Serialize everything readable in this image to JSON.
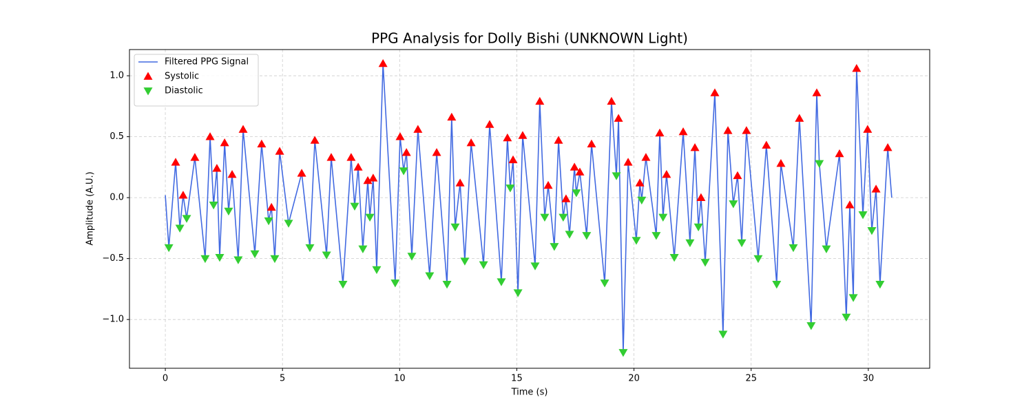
{
  "chart_data": {
    "type": "line",
    "title": "PPG Analysis for Dolly Bishi (UNKNOWN Light)",
    "x_label": "Time (s)",
    "y_label": "Amplitude (A.U.)",
    "xlim": [
      -1.53,
      32.62
    ],
    "ylim": [
      -1.4,
      1.215
    ],
    "xticks": [
      0,
      5,
      10,
      15,
      20,
      25,
      30
    ],
    "yticks": [
      {
        "value": -1.0,
        "label": "−1.0"
      },
      {
        "value": -0.5,
        "label": "−0.5"
      },
      {
        "value": 0.0,
        "label": "0.0"
      },
      0.5,
      {
        "value": 1.0,
        "label": "1.0"
      }
    ],
    "grid": true,
    "legend": "upper left",
    "series": [
      {
        "name": "Filtered PPG Signal",
        "type": "line",
        "color": "#4169e1",
        "x": [
          0.0,
          0.15,
          0.44,
          0.62,
          0.76,
          0.91,
          1.26,
          1.7,
          1.91,
          2.06,
          2.2,
          2.32,
          2.53,
          2.7,
          2.85,
          3.11,
          3.32,
          3.82,
          4.11,
          4.41,
          4.53,
          4.67,
          4.88,
          5.26,
          5.82,
          6.17,
          6.38,
          6.88,
          7.08,
          7.58,
          7.93,
          8.08,
          8.23,
          8.43,
          8.64,
          8.73,
          8.87,
          9.02,
          9.29,
          9.81,
          10.02,
          10.17,
          10.29,
          10.52,
          10.78,
          11.28,
          11.58,
          12.02,
          12.22,
          12.37,
          12.58,
          12.78,
          13.05,
          13.58,
          13.84,
          14.34,
          14.6,
          14.72,
          14.84,
          15.05,
          15.25,
          15.78,
          15.98,
          16.19,
          16.34,
          16.6,
          16.78,
          16.98,
          17.1,
          17.25,
          17.46,
          17.54,
          17.69,
          17.98,
          18.19,
          18.75,
          19.04,
          19.25,
          19.34,
          19.54,
          19.75,
          20.1,
          20.25,
          20.33,
          20.51,
          20.95,
          21.1,
          21.24,
          21.39,
          21.72,
          22.1,
          22.39,
          22.6,
          22.75,
          22.86,
          23.04,
          23.45,
          23.8,
          24.01,
          24.24,
          24.42,
          24.6,
          24.8,
          25.3,
          25.65,
          26.09,
          26.27,
          26.8,
          27.06,
          27.56,
          27.8,
          27.91,
          28.21,
          28.77,
          29.06,
          29.21,
          29.36,
          29.5,
          29.77,
          29.97,
          30.15,
          30.33,
          30.5,
          30.83,
          31.0
        ],
        "y": [
          0.02,
          -0.41,
          0.29,
          -0.25,
          0.02,
          -0.17,
          0.33,
          -0.5,
          0.5,
          -0.06,
          0.24,
          -0.49,
          0.45,
          -0.11,
          0.19,
          -0.51,
          0.56,
          -0.46,
          0.44,
          -0.19,
          -0.08,
          -0.5,
          0.38,
          -0.21,
          0.2,
          -0.41,
          0.47,
          -0.47,
          0.33,
          -0.71,
          0.33,
          -0.07,
          0.25,
          -0.42,
          0.14,
          -0.16,
          0.16,
          -0.59,
          1.1,
          -0.7,
          0.5,
          0.22,
          0.37,
          -0.48,
          0.56,
          -0.64,
          0.37,
          -0.71,
          0.66,
          -0.24,
          0.12,
          -0.52,
          0.45,
          -0.55,
          0.6,
          -0.69,
          0.49,
          0.08,
          0.31,
          -0.78,
          0.51,
          -0.56,
          0.79,
          -0.16,
          0.1,
          -0.4,
          0.47,
          -0.16,
          -0.01,
          -0.3,
          0.25,
          0.04,
          0.21,
          -0.31,
          0.44,
          -0.7,
          0.79,
          0.18,
          0.65,
          -1.27,
          0.29,
          -0.35,
          0.12,
          -0.02,
          0.33,
          -0.31,
          0.53,
          -0.16,
          0.19,
          -0.49,
          0.54,
          -0.37,
          0.41,
          -0.24,
          0.0,
          -0.53,
          0.86,
          -1.12,
          0.55,
          -0.05,
          0.18,
          -0.37,
          0.55,
          -0.5,
          0.43,
          -0.71,
          0.28,
          -0.41,
          0.65,
          -1.05,
          0.86,
          0.28,
          -0.42,
          0.36,
          -0.98,
          -0.06,
          -0.82,
          1.06,
          -0.14,
          0.56,
          -0.27,
          0.07,
          -0.71,
          0.41,
          0.0
        ]
      },
      {
        "name": "Systolic",
        "type": "scatter",
        "marker": "up",
        "color": "#ff0000",
        "x": [
          0.44,
          0.76,
          1.26,
          1.91,
          2.2,
          2.53,
          2.85,
          3.32,
          4.11,
          4.53,
          4.88,
          5.82,
          6.38,
          7.08,
          7.93,
          8.23,
          8.64,
          8.87,
          9.29,
          10.02,
          10.29,
          10.78,
          11.58,
          12.22,
          12.58,
          13.05,
          13.84,
          14.6,
          14.84,
          15.25,
          15.98,
          16.34,
          16.78,
          17.1,
          17.46,
          17.69,
          18.19,
          19.04,
          19.34,
          19.75,
          20.25,
          20.51,
          21.1,
          21.39,
          22.1,
          22.6,
          22.86,
          23.45,
          24.01,
          24.42,
          24.8,
          25.65,
          26.27,
          27.06,
          27.8,
          28.77,
          29.21,
          29.5,
          29.97,
          30.33,
          30.83
        ],
        "y": [
          0.29,
          0.02,
          0.33,
          0.5,
          0.24,
          0.45,
          0.19,
          0.56,
          0.44,
          -0.08,
          0.38,
          0.2,
          0.47,
          0.33,
          0.33,
          0.25,
          0.14,
          0.16,
          1.1,
          0.5,
          0.37,
          0.56,
          0.37,
          0.66,
          0.12,
          0.45,
          0.6,
          0.49,
          0.31,
          0.51,
          0.79,
          0.1,
          0.47,
          -0.01,
          0.25,
          0.21,
          0.44,
          0.79,
          0.65,
          0.29,
          0.12,
          0.33,
          0.53,
          0.19,
          0.54,
          0.41,
          0.0,
          0.86,
          0.55,
          0.18,
          0.55,
          0.43,
          0.28,
          0.65,
          0.86,
          0.36,
          -0.06,
          1.06,
          0.56,
          0.07,
          0.41
        ]
      },
      {
        "name": "Diastolic",
        "type": "scatter",
        "marker": "down",
        "color": "#32cd32",
        "x": [
          0.15,
          0.62,
          0.91,
          1.7,
          2.06,
          2.32,
          2.7,
          3.11,
          3.82,
          4.41,
          4.67,
          5.26,
          6.17,
          6.88,
          7.58,
          8.08,
          8.43,
          8.73,
          9.02,
          9.81,
          10.17,
          10.52,
          11.28,
          12.02,
          12.37,
          12.78,
          13.58,
          14.34,
          14.72,
          15.05,
          15.78,
          16.19,
          16.6,
          16.98,
          17.25,
          17.54,
          17.98,
          18.75,
          19.25,
          19.54,
          20.1,
          20.33,
          20.95,
          21.24,
          21.72,
          22.39,
          22.75,
          23.04,
          23.8,
          24.24,
          24.6,
          25.3,
          26.09,
          26.8,
          27.56,
          27.91,
          28.21,
          29.06,
          29.36,
          29.77,
          30.15,
          30.5
        ],
        "y": [
          -0.41,
          -0.25,
          -0.17,
          -0.5,
          -0.06,
          -0.49,
          -0.11,
          -0.51,
          -0.46,
          -0.19,
          -0.5,
          -0.21,
          -0.41,
          -0.47,
          -0.71,
          -0.07,
          -0.42,
          -0.16,
          -0.59,
          -0.7,
          0.22,
          -0.48,
          -0.64,
          -0.71,
          -0.24,
          -0.52,
          -0.55,
          -0.69,
          0.08,
          -0.78,
          -0.56,
          -0.16,
          -0.4,
          -0.16,
          -0.3,
          0.04,
          -0.31,
          -0.7,
          0.18,
          -1.27,
          -0.35,
          -0.02,
          -0.31,
          -0.16,
          -0.49,
          -0.37,
          -0.24,
          -0.53,
          -1.12,
          -0.05,
          -0.37,
          -0.5,
          -0.71,
          -0.41,
          -1.05,
          0.28,
          -0.42,
          -0.98,
          -0.82,
          -0.14,
          -0.27,
          -0.71
        ]
      }
    ]
  }
}
